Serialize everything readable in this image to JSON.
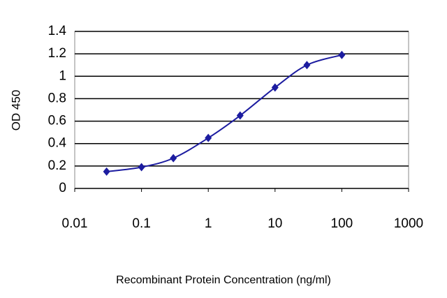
{
  "chart_data": {
    "type": "line",
    "xlabel": "Recombinant Protein Concentration (ng/ml)",
    "ylabel": "OD 450",
    "x": [
      0.03,
      0.1,
      0.3,
      1,
      3,
      10,
      30,
      100
    ],
    "values": [
      0.15,
      0.19,
      0.27,
      0.45,
      0.65,
      0.9,
      1.1,
      1.19
    ],
    "color": "#1c1ca0",
    "xlim": [
      0.01,
      1000
    ],
    "xticks": [
      0.01,
      0.1,
      1,
      10,
      100,
      1000
    ],
    "xscale": "log",
    "ylim": [
      0,
      1.4
    ],
    "yticks": [
      0,
      0.2,
      0.4,
      0.6,
      0.8,
      1,
      1.2,
      1.4
    ],
    "grid": true
  }
}
